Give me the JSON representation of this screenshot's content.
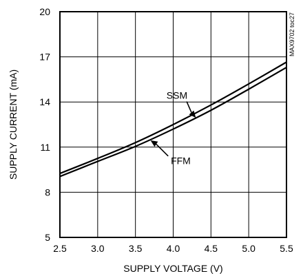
{
  "chart_data": {
    "type": "line",
    "xlabel": "SUPPLY VOLTAGE (V)",
    "ylabel": "SUPPLY CURRENT (mA)",
    "xlim": [
      2.5,
      5.5
    ],
    "ylim": [
      5,
      20
    ],
    "xticks": [
      2.5,
      3.0,
      3.5,
      4.0,
      4.5,
      5.0,
      5.5
    ],
    "xtick_labels": [
      "2.5",
      "3.0",
      "3.5",
      "4.0",
      "4.5",
      "5.0",
      "5.5"
    ],
    "yticks": [
      5,
      8,
      11,
      14,
      17,
      20
    ],
    "ytick_labels": [
      "5",
      "8",
      "11",
      "14",
      "17",
      "20"
    ],
    "grid": true,
    "code_label": "MAX9702 toc27",
    "series": [
      {
        "name": "SSM",
        "x": [
          2.5,
          3.0,
          3.5,
          4.0,
          4.5,
          5.0,
          5.5
        ],
        "y": [
          9.25,
          10.25,
          11.3,
          12.5,
          13.8,
          15.2,
          16.65
        ]
      },
      {
        "name": "FFM",
        "x": [
          2.5,
          3.0,
          3.5,
          4.0,
          4.5,
          5.0,
          5.5
        ],
        "y": [
          9.05,
          10.05,
          11.05,
          12.2,
          13.45,
          14.85,
          16.3
        ]
      }
    ],
    "annotations": [
      {
        "label": "SSM",
        "series": 0,
        "text_at": [
          4.05,
          14.45
        ],
        "arrow_to": [
          4.3,
          12.95
        ]
      },
      {
        "label": "FFM",
        "series": 1,
        "text_at": [
          4.1,
          10.1
        ],
        "arrow_to": [
          3.7,
          11.45
        ]
      }
    ]
  }
}
